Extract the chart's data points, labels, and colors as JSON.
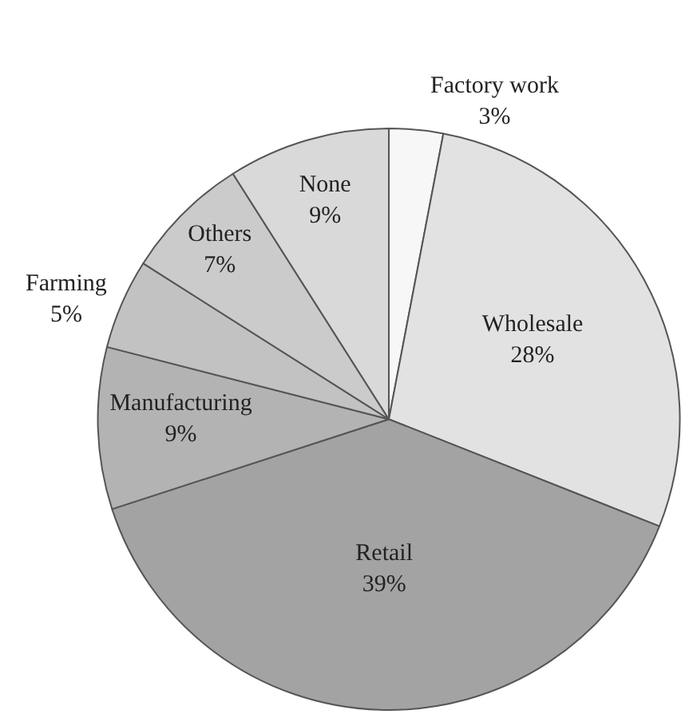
{
  "chart_data": {
    "type": "pie",
    "categories": [
      "Factory work",
      "Wholesale",
      "Retail",
      "Manufacturing",
      "Farming",
      "Others",
      "None"
    ],
    "values": [
      3,
      28,
      39,
      9,
      5,
      7,
      9
    ],
    "value_labels": [
      "3%",
      "28%",
      "39%",
      "9%",
      "5%",
      "7%",
      "9%"
    ],
    "colors": [
      "#f7f7f7",
      "#e2e2e2",
      "#a3a3a3",
      "#b3b3b3",
      "#c2c2c2",
      "#cbcbcb",
      "#d9d9d9"
    ],
    "legend": false
  }
}
